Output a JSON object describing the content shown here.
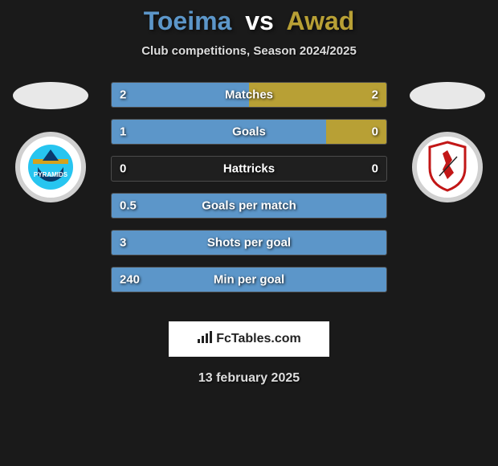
{
  "title": {
    "player1": "Toeima",
    "vs": "vs",
    "player2": "Awad"
  },
  "subtitle": "Club competitions, Season 2024/2025",
  "colors": {
    "p1_text": "#5c96c9",
    "p2_text": "#b8a035",
    "bar_left": "#5c96c9",
    "bar_right": "#b8a035",
    "background": "#1a1a1a"
  },
  "stats": [
    {
      "label": "Matches",
      "left_val": "2",
      "right_val": "2",
      "left_pct": 50,
      "right_pct": 50
    },
    {
      "label": "Goals",
      "left_val": "1",
      "right_val": "0",
      "left_pct": 78,
      "right_pct": 22
    },
    {
      "label": "Hattricks",
      "left_val": "0",
      "right_val": "0",
      "left_pct": 0,
      "right_pct": 0
    },
    {
      "label": "Goals per match",
      "left_val": "0.5",
      "right_val": "",
      "left_pct": 100,
      "right_pct": 0
    },
    {
      "label": "Shots per goal",
      "left_val": "3",
      "right_val": "",
      "left_pct": 100,
      "right_pct": 0
    },
    {
      "label": "Min per goal",
      "left_val": "240",
      "right_val": "",
      "left_pct": 100,
      "right_pct": 0
    }
  ],
  "footer_brand": "FcTables.com",
  "date": "13 february 2025",
  "club_left": {
    "svg_colors": {
      "top": "#27c5f0",
      "mid": "#d4a21e",
      "bot": "#0a3a6b"
    }
  },
  "club_right": {
    "svg_colors": {
      "shield_fill": "#ffffff",
      "shield_stroke": "#c21717",
      "figure": "#c21717"
    }
  }
}
